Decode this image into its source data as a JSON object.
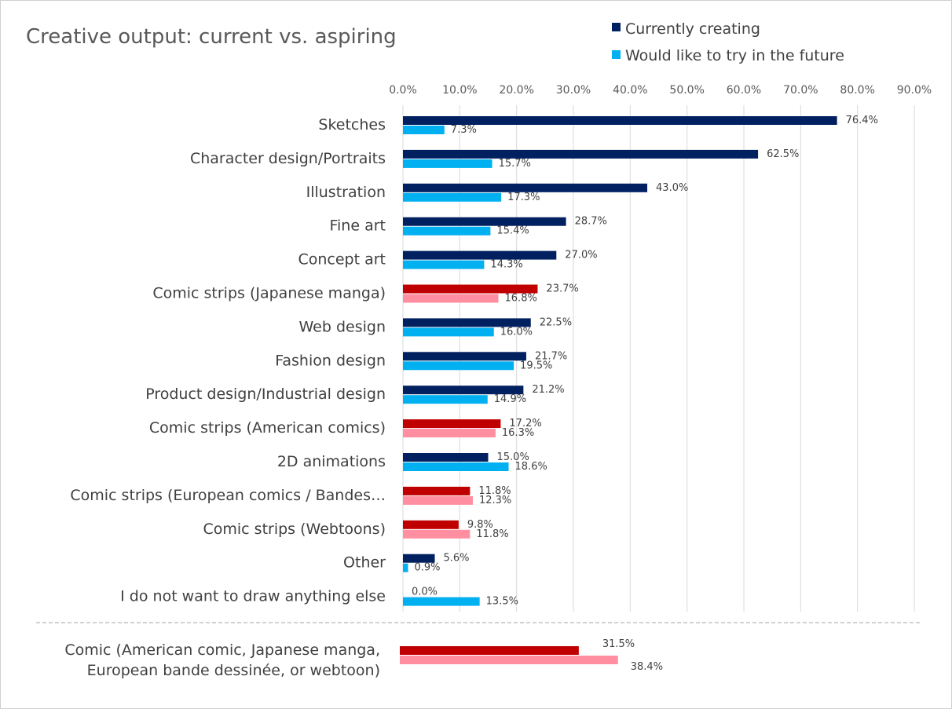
{
  "chart_data": {
    "type": "bar",
    "orientation": "horizontal",
    "title": "Creative output: current vs. aspiring",
    "xlim": [
      0,
      90
    ],
    "x_ticks": [
      "0.0%",
      "10.0%",
      "20.0%",
      "30.0%",
      "40.0%",
      "50.0%",
      "60.0%",
      "70.0%",
      "80.0%",
      "90.0%"
    ],
    "grid": "vertical",
    "legend_position": "top-right",
    "colors": {
      "current": "#002060",
      "future": "#00b0f0",
      "current_comic": "#c00000",
      "future_comic": "#ff8fa0",
      "grid": "#d9d9d9",
      "separator": "#a6a6a6"
    },
    "series": [
      {
        "name": "Currently creating"
      },
      {
        "name": "Would like to try in the future"
      }
    ],
    "categories": [
      {
        "label": "Sketches",
        "current": 76.4,
        "future": 7.3,
        "current_label": "76.4%",
        "future_label": "7.3%",
        "comic": false
      },
      {
        "label": "Character design/Portraits",
        "current": 62.5,
        "future": 15.7,
        "current_label": "62.5%",
        "future_label": "15.7%",
        "comic": false
      },
      {
        "label": "Illustration",
        "current": 43.0,
        "future": 17.3,
        "current_label": "43.0%",
        "future_label": "17.3%",
        "comic": false
      },
      {
        "label": "Fine art",
        "current": 28.7,
        "future": 15.4,
        "current_label": "28.7%",
        "future_label": "15.4%",
        "comic": false
      },
      {
        "label": "Concept art",
        "current": 27.0,
        "future": 14.3,
        "current_label": "27.0%",
        "future_label": "14.3%",
        "comic": false
      },
      {
        "label": "Comic strips (Japanese manga)",
        "current": 23.7,
        "future": 16.8,
        "current_label": "23.7%",
        "future_label": "16.8%",
        "comic": true
      },
      {
        "label": "Web design",
        "current": 22.5,
        "future": 16.0,
        "current_label": "22.5%",
        "future_label": "16.0%",
        "comic": false
      },
      {
        "label": "Fashion design",
        "current": 21.7,
        "future": 19.5,
        "current_label": "21.7%",
        "future_label": "19.5%",
        "comic": false
      },
      {
        "label": "Product design/Industrial design",
        "current": 21.2,
        "future": 14.9,
        "current_label": "21.2%",
        "future_label": "14.9%",
        "comic": false
      },
      {
        "label": "Comic strips (American comics)",
        "current": 17.2,
        "future": 16.3,
        "current_label": "17.2%",
        "future_label": "16.3%",
        "comic": true
      },
      {
        "label": "2D animations",
        "current": 15.0,
        "future": 18.6,
        "current_label": "15.0%",
        "future_label": "18.6%",
        "comic": false
      },
      {
        "label": "Comic strips (European comics / Bandes…",
        "current": 11.8,
        "future": 12.3,
        "current_label": "11.8%",
        "future_label": "12.3%",
        "comic": true
      },
      {
        "label": "Comic strips (Webtoons)",
        "current": 9.8,
        "future": 11.8,
        "current_label": "9.8%",
        "future_label": "11.8%",
        "comic": true
      },
      {
        "label": "Other",
        "current": 5.6,
        "future": 0.9,
        "current_label": "5.6%",
        "future_label": "0.9%",
        "comic": false
      },
      {
        "label": "I do not want to draw anything else",
        "current": 0.0,
        "future": 13.5,
        "current_label": "0.0%",
        "future_label": "13.5%",
        "comic": false
      }
    ],
    "summary": {
      "label_lines": [
        "Comic (American comic, Japanese manga,",
        "European bande dessinée, or webtoon)"
      ],
      "current": 31.5,
      "future": 38.4,
      "current_label": "31.5%",
      "future_label": "38.4%"
    }
  }
}
